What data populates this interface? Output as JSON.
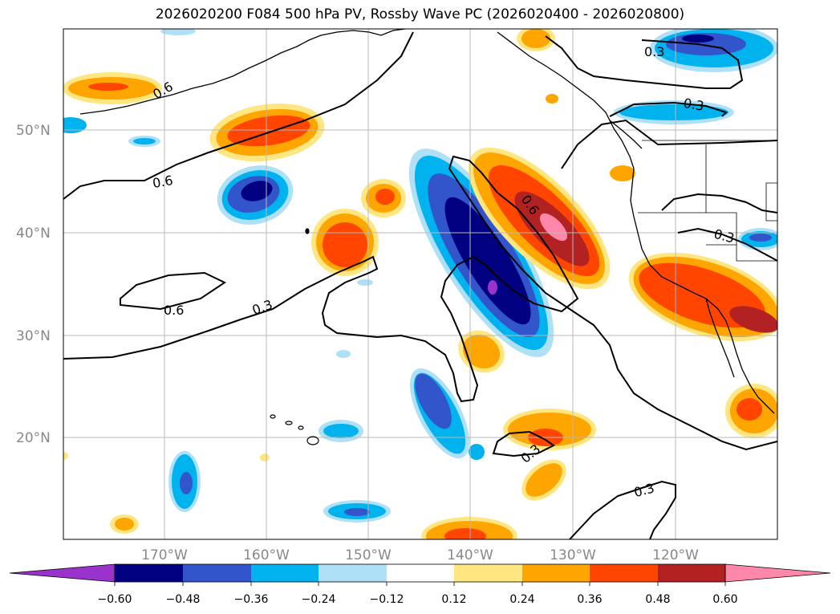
{
  "title": "2026020200 F084 500 hPa PV, Rossby Wave PC (2026020400 - 2026020800)",
  "map": {
    "lat_labels": [
      "50°N",
      "40°N",
      "30°N",
      "20°N"
    ],
    "lon_labels": [
      "170°W",
      "160°W",
      "150°W",
      "140°W",
      "130°W",
      "120°W"
    ],
    "contour_labels": [
      "0.6",
      "0.6",
      "0.6",
      "0.3",
      "0.6",
      "0.3",
      "0.3",
      "0.3",
      "0.3",
      "0.3"
    ]
  },
  "colorbar": {
    "ticks": [
      "−0.60",
      "−0.48",
      "−0.36",
      "−0.24",
      "−0.12",
      "0.12",
      "0.24",
      "0.36",
      "0.48",
      "0.60"
    ],
    "colors": [
      "#9933cc",
      "#000080",
      "#3355cc",
      "#00b2ee",
      "#aee0f8",
      "#ffffff",
      "#ffe680",
      "#ffa500",
      "#ff4500",
      "#b22222",
      "#ff88aa"
    ]
  }
}
